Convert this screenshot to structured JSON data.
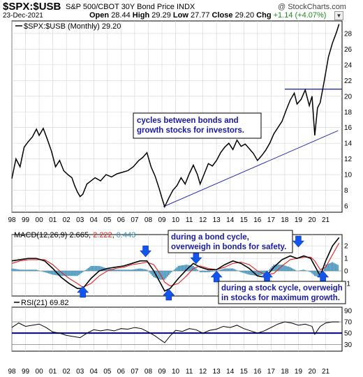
{
  "header": {
    "symbol": "$SPX:$USB",
    "name": "S&P 500/CBOT 30Y Bond Price INDX",
    "brand": "@ StockCharts.com",
    "date": "23-Dec-2021",
    "open_label": "Open",
    "open": "28.44",
    "high_label": "High",
    "high": "29.29",
    "low_label": "Low",
    "low": "27.77",
    "close_label": "Close",
    "close": "29.20",
    "chg_label": "Chg",
    "chg": "+1.14 (+4.07%)"
  },
  "colors": {
    "price": "#000000",
    "macd": "#000000",
    "signal": "#dd2222",
    "histogram": "#3d8fb8",
    "trend": "#2233aa",
    "arrow": "#1155ee",
    "note_text": "#1a1aa0",
    "rsi_band": "#000080"
  },
  "chart_data": [
    {
      "type": "line",
      "legend": "$SPX:$USB (Monthly) 29.20",
      "y_ticks": [
        6,
        8,
        10,
        12,
        14,
        16,
        18,
        20,
        22,
        24,
        26,
        28
      ],
      "ylim": [
        5.2,
        29.6
      ],
      "x_ticks": [
        "98",
        "99",
        "00",
        "01",
        "02",
        "03",
        "04",
        "05",
        "06",
        "07",
        "08",
        "09",
        "10",
        "11",
        "12",
        "13",
        "14",
        "15",
        "16",
        "17",
        "18",
        "19",
        "20",
        "21"
      ],
      "xlim": [
        1998.0,
        2022.2
      ],
      "series": [
        {
          "x": [
            1998.0,
            1998.3,
            1998.6,
            1998.9,
            1999.2,
            1999.5,
            1999.8,
            2000.0,
            2000.3,
            2000.6,
            2000.9,
            2001.2,
            2001.5,
            2001.8,
            2002.1,
            2002.4,
            2002.6,
            2002.8,
            2003.0,
            2003.2,
            2003.5,
            2003.8,
            2004.1,
            2004.5,
            2004.9,
            2005.3,
            2005.7,
            2006.1,
            2006.5,
            2006.9,
            2007.3,
            2007.6,
            2007.9,
            2008.2,
            2008.5,
            2008.8,
            2009.0,
            2009.2,
            2009.5,
            2009.8,
            2010.1,
            2010.4,
            2010.7,
            2011.0,
            2011.3,
            2011.6,
            2011.8,
            2012.1,
            2012.4,
            2012.7,
            2013.0,
            2013.3,
            2013.6,
            2013.9,
            2014.2,
            2014.5,
            2014.8,
            2015.1,
            2015.4,
            2015.7,
            2016.0,
            2016.3,
            2016.6,
            2016.9,
            2017.2,
            2017.5,
            2017.8,
            2018.1,
            2018.4,
            2018.7,
            2018.9,
            2019.2,
            2019.5,
            2019.8,
            2020.0,
            2020.2,
            2020.4,
            2020.6,
            2020.9,
            2021.2,
            2021.5,
            2021.8,
            2021.98
          ],
          "y": [
            9.5,
            12.0,
            11.0,
            13.5,
            14.2,
            14.8,
            15.8,
            15.0,
            15.9,
            14.5,
            13.0,
            11.0,
            11.8,
            10.5,
            10.0,
            9.6,
            8.6,
            7.8,
            7.2,
            7.5,
            8.8,
            9.2,
            9.6,
            9.2,
            10.0,
            9.7,
            10.1,
            10.3,
            10.5,
            11.0,
            11.8,
            12.2,
            12.8,
            11.0,
            9.8,
            8.2,
            7.0,
            5.9,
            7.0,
            8.0,
            8.6,
            9.6,
            8.8,
            10.1,
            11.2,
            10.0,
            8.8,
            10.1,
            11.4,
            11.1,
            11.8,
            12.8,
            13.5,
            14.0,
            13.2,
            14.4,
            13.6,
            13.9,
            13.3,
            12.7,
            11.8,
            12.4,
            13.1,
            14.0,
            15.2,
            16.0,
            16.8,
            18.2,
            19.5,
            20.4,
            19.0,
            19.6,
            20.8,
            18.8,
            20.0,
            15.0,
            18.5,
            19.2,
            22.0,
            25.0,
            26.8,
            28.2,
            29.2
          ]
        }
      ],
      "lines": [
        {
          "name": "support",
          "x": [
            2009.1,
            2021.9
          ],
          "y": [
            5.9,
            15.6
          ]
        },
        {
          "name": "resistance",
          "x": [
            2018.0,
            2022.2
          ],
          "y": [
            20.9,
            20.9
          ]
        }
      ],
      "annotation": {
        "text": [
          "cycles between bonds and",
          "growth stocks for investors."
        ]
      }
    },
    {
      "type": "line",
      "legend": {
        "label": "MACD(12,26,9)",
        "macd": "2.665",
        "signal": "2.222",
        "histogram": "0.443"
      },
      "y_ticks": [
        -1,
        0,
        1,
        2
      ],
      "ylim": [
        -2.0,
        2.9
      ],
      "x": [
        1998.0,
        1998.6,
        1999.2,
        1999.8,
        2000.4,
        2001.0,
        2001.6,
        2002.2,
        2002.8,
        2003.2,
        2003.8,
        2004.4,
        2005.0,
        2005.6,
        2006.2,
        2006.8,
        2007.4,
        2007.9,
        2008.4,
        2008.9,
        2009.2,
        2009.6,
        2010.2,
        2010.8,
        2011.3,
        2011.8,
        2012.4,
        2013.0,
        2013.6,
        2014.2,
        2014.8,
        2015.4,
        2016.0,
        2016.6,
        2017.2,
        2017.8,
        2018.4,
        2018.9,
        2019.4,
        2019.9,
        2020.2,
        2020.6,
        2021.0,
        2021.5,
        2021.98
      ],
      "series": [
        {
          "name": "MACD",
          "values": [
            0.8,
            0.9,
            1.0,
            1.0,
            0.8,
            0.2,
            -0.5,
            -1.0,
            -1.4,
            -1.4,
            -0.6,
            0.0,
            0.2,
            0.3,
            0.4,
            0.6,
            0.8,
            0.8,
            0.0,
            -1.0,
            -1.6,
            -1.4,
            -0.6,
            0.1,
            0.6,
            0.3,
            0.1,
            0.1,
            0.5,
            0.8,
            0.6,
            0.2,
            -0.4,
            -0.5,
            0.3,
            0.9,
            1.2,
            1.0,
            1.2,
            1.0,
            0.4,
            -0.4,
            0.8,
            2.0,
            2.665
          ]
        },
        {
          "name": "Signal",
          "values": [
            0.6,
            0.8,
            0.9,
            0.9,
            0.9,
            0.5,
            -0.1,
            -0.6,
            -1.0,
            -1.3,
            -1.0,
            -0.4,
            0.0,
            0.2,
            0.3,
            0.5,
            0.6,
            0.7,
            0.5,
            -0.3,
            -0.9,
            -1.2,
            -1.0,
            -0.4,
            0.2,
            0.4,
            0.2,
            0.1,
            0.3,
            0.6,
            0.7,
            0.5,
            0.0,
            -0.3,
            -0.2,
            0.4,
            0.9,
            1.0,
            1.1,
            1.1,
            0.8,
            0.1,
            0.3,
            1.3,
            2.222
          ]
        }
      ],
      "histogram_from": "MACD minus Signal",
      "arrows_down_x": [
        2007.8,
        2011.5,
        2019.0
      ],
      "arrows_up_x": [
        2003.2,
        2009.5,
        2013.0,
        2016.7,
        2020.8
      ],
      "annotations": [
        {
          "text": [
            "during a bond cycle,",
            "overweigh in bonds for safety."
          ]
        },
        {
          "text": [
            "during a stock cycle, overweigh",
            "in stocks for maximum growth."
          ]
        }
      ]
    },
    {
      "type": "line",
      "legend": {
        "label": "RSI(21)",
        "value": "69.82"
      },
      "y_ticks": [
        30,
        50,
        70,
        90
      ],
      "ylim": [
        18,
        96
      ],
      "hlines": [
        70,
        50,
        30
      ],
      "x": [
        1998.0,
        1998.5,
        1999.0,
        1999.5,
        2000.0,
        2000.5,
        2001.0,
        2001.5,
        2002.0,
        2002.5,
        2003.0,
        2003.5,
        2004.0,
        2004.5,
        2005.0,
        2005.5,
        2006.0,
        2006.5,
        2007.0,
        2007.5,
        2008.0,
        2008.5,
        2008.9,
        2009.2,
        2009.6,
        2010.0,
        2010.5,
        2011.0,
        2011.5,
        2012.0,
        2012.5,
        2013.0,
        2013.5,
        2014.0,
        2014.5,
        2015.0,
        2015.5,
        2016.0,
        2016.5,
        2017.0,
        2017.5,
        2018.0,
        2018.5,
        2019.0,
        2019.5,
        2020.0,
        2020.2,
        2020.6,
        2021.0,
        2021.5,
        2021.98
      ],
      "values": [
        60,
        68,
        62,
        64,
        66,
        60,
        52,
        50,
        46,
        44,
        42,
        50,
        56,
        54,
        56,
        54,
        58,
        57,
        60,
        58,
        52,
        45,
        38,
        33,
        45,
        55,
        53,
        58,
        56,
        50,
        55,
        57,
        62,
        60,
        64,
        58,
        54,
        50,
        54,
        60,
        66,
        70,
        68,
        64,
        66,
        62,
        48,
        62,
        68,
        70,
        69.82
      ]
    }
  ]
}
